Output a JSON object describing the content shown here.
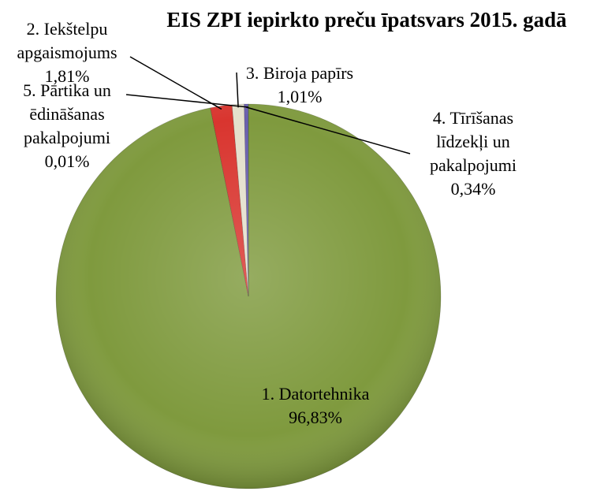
{
  "chart_data": {
    "type": "pie",
    "title": "EIS ZPI iepirkto preču īpatsvars 2015. gadā",
    "categories": [
      "1. Datortehnika",
      "2. Iekštelpu apgaismojums",
      "3. Biroja papīrs",
      "4. Tīrīšanas līdzekļi un pakalpojumi",
      "5. Pārtika un ēdināšanas pakalpojumi"
    ],
    "values": [
      96.83,
      1.81,
      1.01,
      0.34,
      0.01
    ],
    "value_labels": [
      "96,83%",
      "1,81%",
      "1,01%",
      "0,34%",
      "0,01%"
    ],
    "colors": [
      "#7f9a3e",
      "#d9352f",
      "#e4e0cc",
      "#6a5fae",
      "#4bacc6"
    ]
  }
}
